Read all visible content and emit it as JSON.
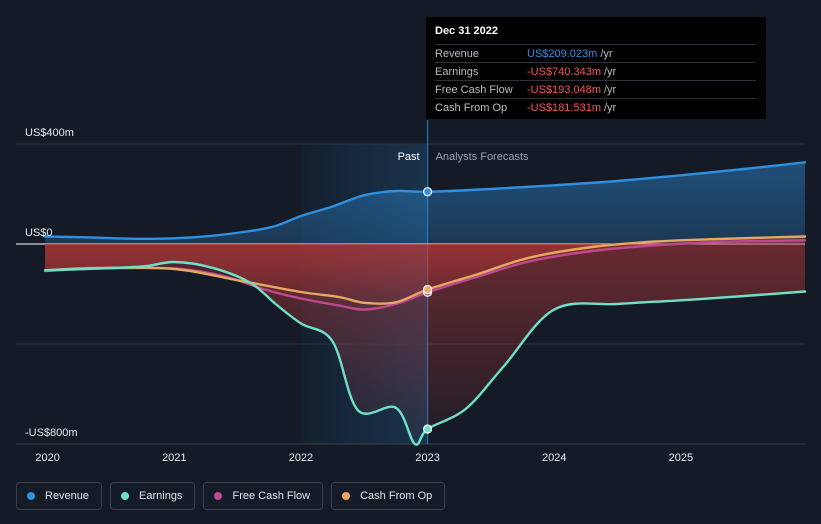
{
  "chart_data": {
    "type": "line",
    "title": "",
    "xlabel": "",
    "ylabel": "",
    "y_unit_labels": {
      "top": "US$400m",
      "zero": "US$0",
      "bottom": "-US$800m"
    },
    "ylim": [
      -800,
      400
    ],
    "xlim": [
      2019.75,
      2025.98
    ],
    "x_ticks": [
      "2020",
      "2021",
      "2022",
      "2023",
      "2024",
      "2025"
    ],
    "divider_x": 2023.0,
    "past_label": "Past",
    "forecast_label": "Analysts Forecasts",
    "series": [
      {
        "name": "Revenue",
        "color": "#2f8fe0",
        "points": [
          [
            2019.98,
            30
          ],
          [
            2020.3,
            27
          ],
          [
            2020.7,
            21
          ],
          [
            2021.0,
            23
          ],
          [
            2021.3,
            33
          ],
          [
            2021.6,
            52
          ],
          [
            2021.8,
            72
          ],
          [
            2022.0,
            112
          ],
          [
            2022.25,
            150
          ],
          [
            2022.5,
            195
          ],
          [
            2022.75,
            212
          ],
          [
            2023.0,
            209
          ],
          [
            2023.5,
            220
          ],
          [
            2024.0,
            235
          ],
          [
            2024.5,
            252
          ],
          [
            2025.0,
            275
          ],
          [
            2025.5,
            300
          ],
          [
            2025.98,
            327
          ]
        ]
      },
      {
        "name": "Earnings",
        "color": "#6fe0c8",
        "points": [
          [
            2019.98,
            -105
          ],
          [
            2020.3,
            -100
          ],
          [
            2020.75,
            -90
          ],
          [
            2021.0,
            -72
          ],
          [
            2021.3,
            -95
          ],
          [
            2021.6,
            -155
          ],
          [
            2021.8,
            -240
          ],
          [
            2022.0,
            -318
          ],
          [
            2022.25,
            -390
          ],
          [
            2022.45,
            -665
          ],
          [
            2022.75,
            -655
          ],
          [
            2022.9,
            -800
          ],
          [
            2023.0,
            -740
          ],
          [
            2023.3,
            -660
          ],
          [
            2023.6,
            -490
          ],
          [
            2024.0,
            -262
          ],
          [
            2024.5,
            -240
          ],
          [
            2025.0,
            -225
          ],
          [
            2025.5,
            -208
          ],
          [
            2025.98,
            -190
          ]
        ]
      },
      {
        "name": "Free Cash Flow",
        "color": "#c0488e",
        "points": [
          [
            2019.98,
            -108
          ],
          [
            2020.4,
            -98
          ],
          [
            2021.0,
            -98
          ],
          [
            2021.4,
            -130
          ],
          [
            2021.7,
            -180
          ],
          [
            2022.0,
            -218
          ],
          [
            2022.3,
            -246
          ],
          [
            2022.5,
            -262
          ],
          [
            2022.75,
            -240
          ],
          [
            2023.0,
            -193
          ],
          [
            2023.4,
            -130
          ],
          [
            2023.8,
            -70
          ],
          [
            2024.3,
            -28
          ],
          [
            2024.8,
            -5
          ],
          [
            2025.3,
            8
          ],
          [
            2025.98,
            15
          ]
        ]
      },
      {
        "name": "Cash From Op",
        "color": "#e5a862",
        "points": [
          [
            2019.98,
            -105
          ],
          [
            2020.4,
            -96
          ],
          [
            2021.0,
            -100
          ],
          [
            2021.5,
            -145
          ],
          [
            2022.0,
            -192
          ],
          [
            2022.3,
            -212
          ],
          [
            2022.5,
            -235
          ],
          [
            2022.75,
            -233
          ],
          [
            2023.0,
            -182
          ],
          [
            2023.4,
            -120
          ],
          [
            2023.8,
            -55
          ],
          [
            2024.3,
            -12
          ],
          [
            2024.8,
            10
          ],
          [
            2025.3,
            20
          ],
          [
            2025.98,
            30
          ]
        ]
      }
    ],
    "highlight_points": [
      {
        "series": "Revenue",
        "x": 2023.0,
        "y": 209
      },
      {
        "series": "Earnings",
        "x": 2023.0,
        "y": -740
      },
      {
        "series": "Free Cash Flow",
        "x": 2023.0,
        "y": -193
      },
      {
        "series": "Cash From Op",
        "x": 2023.0,
        "y": -182
      }
    ]
  },
  "tooltip": {
    "date": "Dec 31 2022",
    "rows": [
      {
        "name": "Revenue",
        "value": "US$209.023m",
        "unit": "/yr",
        "color": "#2f8fe0"
      },
      {
        "name": "Earnings",
        "value": "-US$740.343m",
        "unit": "/yr",
        "color": "#f25757"
      },
      {
        "name": "Free Cash Flow",
        "value": "-US$193.048m",
        "unit": "/yr",
        "color": "#f25757"
      },
      {
        "name": "Cash From Op",
        "value": "-US$181.531m",
        "unit": "/yr",
        "color": "#f25757"
      }
    ]
  },
  "legend": [
    {
      "label": "Revenue",
      "color": "#2f8fe0"
    },
    {
      "label": "Earnings",
      "color": "#6fe0c8"
    },
    {
      "label": "Free Cash Flow",
      "color": "#c0488e"
    },
    {
      "label": "Cash From Op",
      "color": "#e5a862"
    }
  ]
}
